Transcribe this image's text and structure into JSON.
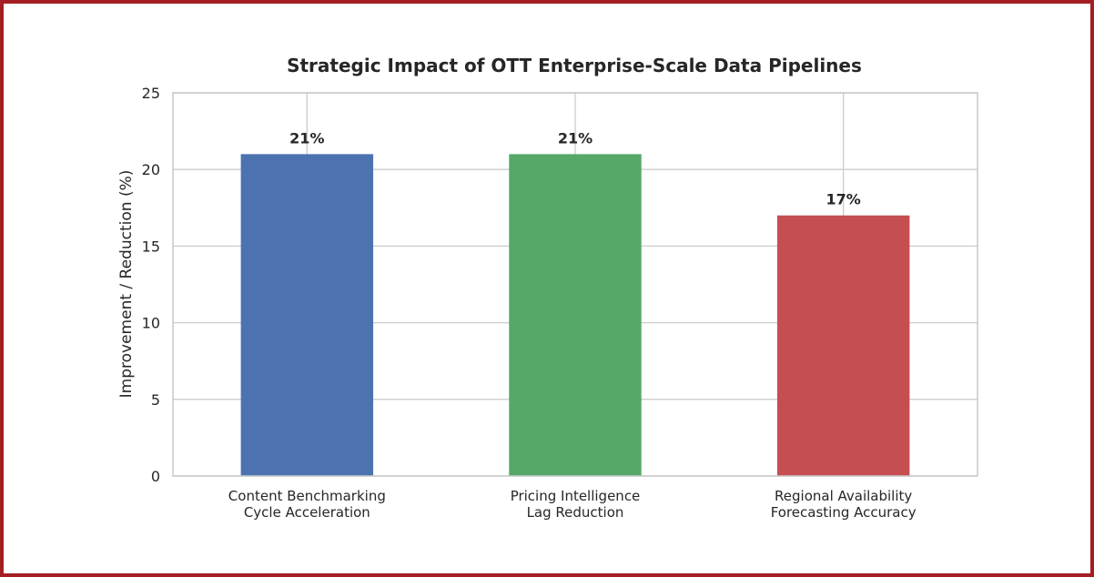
{
  "colors": {
    "frame": "#a31f24",
    "grid": "#cccccc",
    "axes": "#c8c8c8",
    "text": "#262626"
  },
  "chart_data": {
    "type": "bar",
    "title": "Strategic Impact of OTT Enterprise-Scale Data Pipelines",
    "xlabel": "",
    "ylabel": "Improvement / Reduction (%)",
    "ylim": [
      0,
      25
    ],
    "yticks": [
      0,
      5,
      10,
      15,
      20,
      25
    ],
    "grid": true,
    "legend": "none",
    "categories": [
      [
        "Content Benchmarking",
        "Cycle Acceleration"
      ],
      [
        "Pricing Intelligence",
        "Lag Reduction"
      ],
      [
        "Regional Availability",
        "Forecasting Accuracy"
      ]
    ],
    "values": [
      21,
      21,
      17
    ],
    "data_labels": [
      "21%",
      "21%",
      "17%"
    ],
    "bar_colors": [
      "#4c72b0",
      "#55a868",
      "#c44e52"
    ]
  }
}
